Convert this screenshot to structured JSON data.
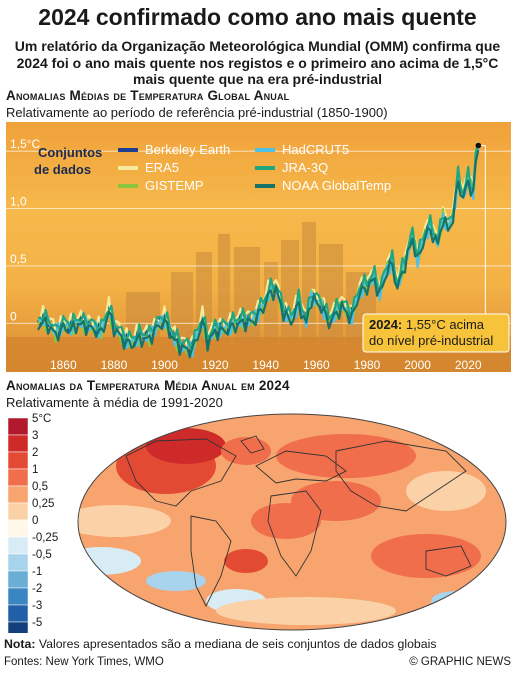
{
  "header": {
    "title": "2024 confirmado como ano mais quente",
    "intro": "Um relatório da Organização Meteorológica Mundial (OMM) confirma que 2024 foi o ano mais quente nos registos e o primeiro ano acima de 1,5°C mais quente que na era pré-industrial"
  },
  "section1": {
    "heading": "Anomalias Médias de Temperatura Global Anual",
    "subheading": "Relativamente ao período de referência pré-industrial (1850-1900)",
    "legend_title_line1": "Conjuntos",
    "legend_title_line2": "de dados",
    "callout_year": "2024:",
    "callout_line1": " 1,55°C acima",
    "callout_line2": "do nível pré-industrial"
  },
  "section2": {
    "heading": "Anomalias da Temperatura Média Anual em 2024",
    "subheading": "Relativamente à média de 1991-2020",
    "scale_labels": [
      "5°C",
      "3",
      "2",
      "1",
      "0,5",
      "0,25",
      "0",
      "-0,25",
      "-0,5",
      "-1",
      "-2",
      "-3",
      "-5"
    ],
    "scale_colors": [
      "#b2182b",
      "#cf2a2a",
      "#e34a33",
      "#f06e4c",
      "#f7a46e",
      "#fbd2a8",
      "#fff7ea",
      "#d8ecf6",
      "#a8d3ec",
      "#6aaed6",
      "#3a85c2",
      "#2160a8",
      "#133f7c"
    ]
  },
  "note": {
    "label": "Nota:",
    "text": " Valores apresentados são a mediana de seis conjuntos de dados globais"
  },
  "footer": {
    "sources": "Fontes: New York Times, WMO",
    "credit": "© GRAPHIC NEWS"
  },
  "chart_data": {
    "type": "line",
    "title": "Anomalias Médias de Temperatura Global Anual",
    "subtitle": "Relativamente ao período de referência pré-industrial (1850-1900)",
    "xlim": [
      1850,
      2029
    ],
    "ylim": [
      -0.25,
      1.65
    ],
    "x_ticks": [
      1860,
      1880,
      1900,
      1920,
      1940,
      1960,
      1980,
      2000,
      2020
    ],
    "y_ticks": [
      {
        "v": 0,
        "label": "0"
      },
      {
        "v": 0.5,
        "label": "0,5"
      },
      {
        "v": 1.0,
        "label": "1,0"
      },
      {
        "v": 1.5,
        "label": "1,5°C"
      }
    ],
    "anchors": [
      [
        1850,
        0.02
      ],
      [
        1852,
        0.05
      ],
      [
        1855,
        0.0
      ],
      [
        1857,
        -0.07
      ],
      [
        1860,
        0.0
      ],
      [
        1863,
        -0.02
      ],
      [
        1866,
        0.03
      ],
      [
        1870,
        0.0
      ],
      [
        1875,
        -0.05
      ],
      [
        1878,
        0.13
      ],
      [
        1880,
        0.0
      ],
      [
        1884,
        -0.12
      ],
      [
        1887,
        -0.15
      ],
      [
        1890,
        -0.1
      ],
      [
        1894,
        -0.1
      ],
      [
        1897,
        0.0
      ],
      [
        1900,
        0.05
      ],
      [
        1904,
        -0.12
      ],
      [
        1907,
        -0.18
      ],
      [
        1911,
        -0.2
      ],
      [
        1915,
        0.05
      ],
      [
        1917,
        -0.13
      ],
      [
        1920,
        -0.04
      ],
      [
        1925,
        -0.02
      ],
      [
        1930,
        0.04
      ],
      [
        1935,
        0.05
      ],
      [
        1939,
        0.17
      ],
      [
        1941,
        0.28
      ],
      [
        1944,
        0.33
      ],
      [
        1947,
        0.13
      ],
      [
        1950,
        0.05
      ],
      [
        1953,
        0.2
      ],
      [
        1956,
        0.03
      ],
      [
        1958,
        0.25
      ],
      [
        1962,
        0.18
      ],
      [
        1965,
        0.04
      ],
      [
        1968,
        0.12
      ],
      [
        1970,
        0.18
      ],
      [
        1974,
        0.08
      ],
      [
        1977,
        0.3
      ],
      [
        1980,
        0.35
      ],
      [
        1983,
        0.42
      ],
      [
        1985,
        0.28
      ],
      [
        1988,
        0.5
      ],
      [
        1990,
        0.55
      ],
      [
        1992,
        0.34
      ],
      [
        1995,
        0.55
      ],
      [
        1998,
        0.78
      ],
      [
        2000,
        0.58
      ],
      [
        2003,
        0.8
      ],
      [
        2005,
        0.85
      ],
      [
        2008,
        0.72
      ],
      [
        2010,
        0.95
      ],
      [
        2012,
        0.85
      ],
      [
        2014,
        0.95
      ],
      [
        2016,
        1.28
      ],
      [
        2018,
        1.12
      ],
      [
        2020,
        1.28
      ],
      [
        2022,
        1.15
      ],
      [
        2023,
        1.45
      ],
      [
        2024,
        1.55
      ]
    ],
    "series": [
      {
        "name": "Berkeley Earth",
        "color": "#1d3f8f",
        "offset": 0.0
      },
      {
        "name": "ERA5",
        "color": "#f3ea9c",
        "offset": 0.03
      },
      {
        "name": "GISTEMP",
        "color": "#8cc63f",
        "offset": -0.03
      },
      {
        "name": "HadCRUT5",
        "color": "#4fc1e9",
        "offset": -0.02
      },
      {
        "name": "JRA-3Q",
        "color": "#1fa77f",
        "offset": 0.02
      },
      {
        "name": "NOAA GlobalTemp",
        "color": "#16736a",
        "offset": -0.04
      }
    ],
    "highlight": {
      "x": 2024,
      "y": 1.55
    }
  }
}
